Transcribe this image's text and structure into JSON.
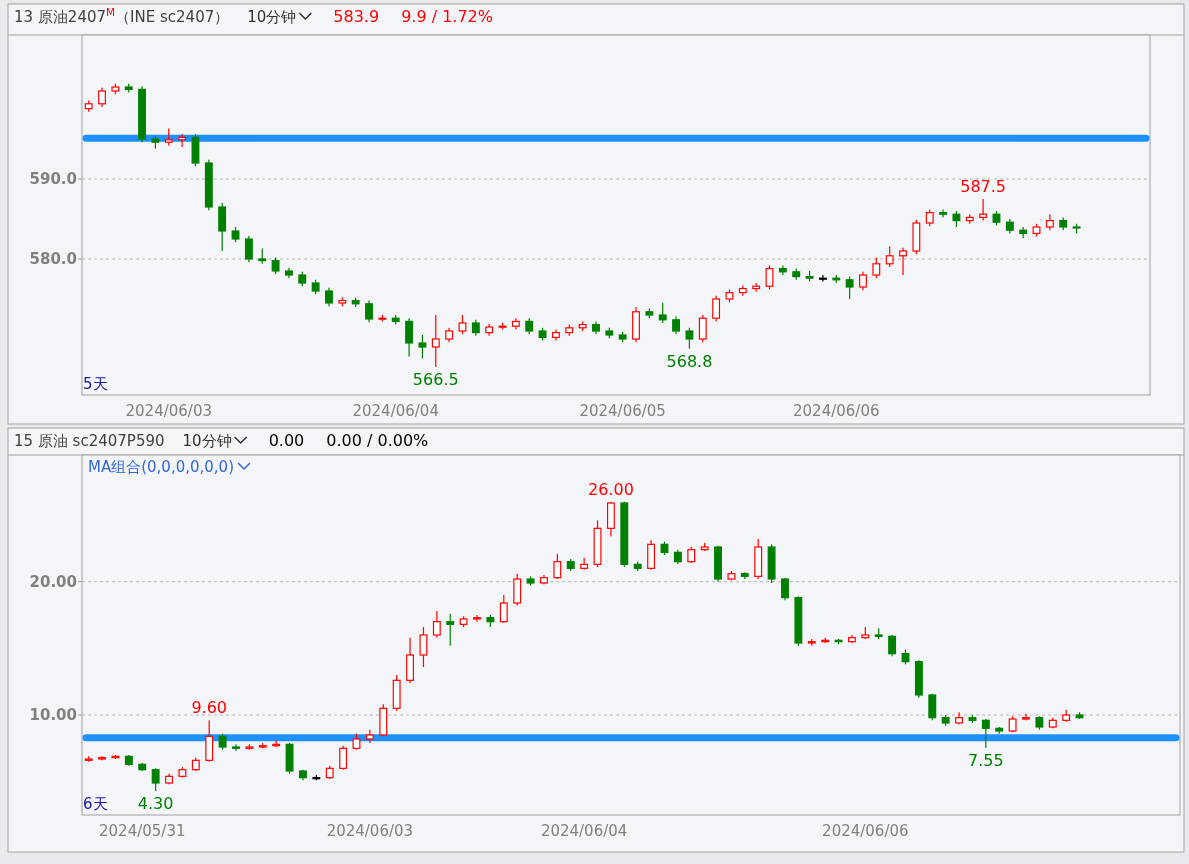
{
  "chart_data": [
    {
      "type": "candlestick",
      "title": "13 原油2407$^{M}$（INE sc2407）",
      "subtitle": "10分钟",
      "annotations": [
        "583.9",
        "9.9 / 1.72%",
        "5天",
        {
          "text": "566.5",
          "y": 566.5
        },
        {
          "text": "568.8",
          "y": 568.8
        },
        {
          "text": "587.5",
          "y": 587.5
        }
      ],
      "categories": [
        null,
        null,
        null,
        null,
        null,
        null,
        "2024/06/03",
        null,
        null,
        null,
        null,
        null,
        null,
        null,
        null,
        null,
        null,
        null,
        null,
        null,
        null,
        null,
        null,
        "2024/06/04",
        null,
        null,
        null,
        null,
        null,
        null,
        null,
        null,
        null,
        null,
        null,
        null,
        null,
        null,
        null,
        null,
        "2024/06/05",
        null,
        null,
        null,
        null,
        null,
        null,
        null,
        null,
        null,
        null,
        null,
        null,
        null,
        null,
        null,
        "2024/06/06",
        null,
        null,
        null,
        null,
        null,
        null,
        null,
        null,
        null,
        null,
        null,
        null,
        null,
        null,
        null,
        null,
        null,
        null,
        null,
        null,
        null,
        null,
        null
      ],
      "ohlc": [
        [
          598.8,
          599.8,
          598.4,
          599.4
        ],
        [
          599.4,
          601.4,
          599.0,
          601.0
        ],
        [
          601.0,
          601.9,
          600.6,
          601.5
        ],
        [
          601.5,
          601.9,
          600.8,
          601.2
        ],
        [
          601.2,
          601.6,
          594.6,
          595.0
        ],
        [
          595.0,
          595.4,
          593.8,
          594.6
        ],
        [
          594.6,
          596.3,
          594.2,
          594.9
        ],
        [
          594.9,
          595.6,
          594.0,
          595.2
        ],
        [
          595.2,
          595.6,
          591.6,
          592.0
        ],
        [
          592.0,
          592.4,
          586.1,
          586.5
        ],
        [
          586.5,
          587.0,
          581.0,
          583.5
        ],
        [
          583.5,
          584.0,
          582.1,
          582.5
        ],
        [
          582.5,
          582.9,
          579.6,
          580.0
        ],
        [
          580.0,
          581.3,
          579.4,
          579.8
        ],
        [
          579.8,
          580.2,
          578.1,
          578.5
        ],
        [
          578.5,
          578.9,
          577.6,
          578.0
        ],
        [
          578.0,
          578.4,
          576.6,
          577.0
        ],
        [
          577.0,
          577.4,
          575.6,
          576.0
        ],
        [
          576.0,
          576.4,
          574.1,
          574.5
        ],
        [
          574.5,
          575.2,
          574.1,
          574.8
        ],
        [
          574.8,
          575.2,
          574.0,
          574.4
        ],
        [
          574.4,
          574.8,
          572.1,
          572.5
        ],
        [
          572.5,
          573.0,
          572.2,
          572.6
        ],
        [
          572.6,
          573.0,
          571.8,
          572.2
        ],
        [
          572.2,
          572.6,
          567.8,
          569.5
        ],
        [
          569.5,
          570.5,
          567.6,
          569.0
        ],
        [
          569.0,
          573.0,
          566.5,
          570.0
        ],
        [
          570.0,
          571.4,
          569.6,
          571.0
        ],
        [
          571.0,
          573.0,
          570.6,
          572.0
        ],
        [
          572.0,
          572.4,
          570.4,
          570.8
        ],
        [
          570.8,
          571.9,
          570.4,
          571.5
        ],
        [
          571.5,
          572.0,
          571.2,
          571.6
        ],
        [
          571.6,
          572.6,
          571.2,
          572.2
        ],
        [
          572.2,
          572.6,
          570.6,
          571.0
        ],
        [
          571.0,
          571.4,
          569.8,
          570.2
        ],
        [
          570.2,
          571.2,
          569.8,
          570.8
        ],
        [
          570.8,
          571.8,
          570.4,
          571.4
        ],
        [
          571.4,
          572.2,
          571.0,
          571.8
        ],
        [
          571.8,
          572.2,
          570.6,
          571.0
        ],
        [
          571.0,
          571.4,
          570.1,
          570.5
        ],
        [
          570.5,
          570.9,
          569.6,
          570.0
        ],
        [
          570.0,
          574.0,
          569.6,
          573.4
        ],
        [
          573.4,
          573.8,
          572.6,
          573.0
        ],
        [
          573.0,
          574.5,
          572.0,
          572.4
        ],
        [
          572.4,
          572.8,
          570.6,
          571.0
        ],
        [
          571.0,
          571.4,
          568.8,
          570.0
        ],
        [
          570.0,
          573.0,
          569.6,
          572.6
        ],
        [
          572.6,
          575.4,
          572.2,
          575.0
        ],
        [
          575.0,
          576.2,
          574.6,
          575.8
        ],
        [
          575.8,
          576.7,
          575.4,
          576.3
        ],
        [
          576.3,
          577.0,
          575.9,
          576.6
        ],
        [
          576.6,
          579.2,
          576.2,
          578.8
        ],
        [
          578.8,
          579.2,
          578.0,
          578.4
        ],
        [
          578.4,
          578.8,
          577.4,
          577.8
        ],
        [
          577.8,
          578.5,
          577.2,
          577.6
        ],
        [
          577.6,
          578.0,
          577.2,
          577.6
        ],
        [
          577.6,
          578.0,
          577.0,
          577.4
        ],
        [
          577.4,
          577.8,
          575.0,
          576.5
        ],
        [
          576.5,
          578.4,
          576.1,
          578.0
        ],
        [
          578.0,
          580.2,
          577.6,
          579.4
        ],
        [
          579.4,
          581.6,
          579.0,
          580.4
        ],
        [
          580.4,
          581.4,
          578.0,
          581.0
        ],
        [
          581.0,
          584.9,
          580.6,
          584.5
        ],
        [
          584.5,
          586.2,
          584.1,
          585.8
        ],
        [
          585.8,
          586.2,
          585.2,
          585.6
        ],
        [
          585.6,
          586.0,
          584.0,
          584.8
        ],
        [
          584.8,
          585.6,
          584.4,
          585.2
        ],
        [
          585.2,
          587.5,
          584.8,
          585.6
        ],
        [
          585.6,
          586.0,
          584.2,
          584.6
        ],
        [
          584.6,
          585.0,
          583.2,
          583.6
        ],
        [
          583.6,
          584.0,
          582.6,
          583.2
        ],
        [
          583.2,
          584.4,
          582.8,
          584.0
        ],
        [
          584.0,
          585.6,
          583.6,
          584.8
        ],
        [
          584.8,
          585.2,
          583.6,
          584.0
        ],
        [
          584.0,
          584.4,
          583.2,
          583.9
        ],
        null,
        null,
        null,
        null,
        null
      ],
      "colors": [
        "#ff0000",
        "#ff0000",
        "#ff0000",
        "#008000",
        "#008000",
        "#008000",
        "#ff0000",
        "#ff0000",
        "#008000",
        "#008000",
        "#008000",
        "#008000",
        "#008000",
        "#008000",
        "#008000",
        "#008000",
        "#008000",
        "#008000",
        "#008000",
        "#ff0000",
        "#008000",
        "#008000",
        "#ff0000",
        "#008000",
        "#008000",
        "#008000",
        "#ff0000",
        "#ff0000",
        "#ff0000",
        "#008000",
        "#ff0000",
        "#ff0000",
        "#ff0000",
        "#008000",
        "#008000",
        "#ff0000",
        "#ff0000",
        "#ff0000",
        "#008000",
        "#008000",
        "#008000",
        "#ff0000",
        "#008000",
        "#008000",
        "#008000",
        "#008000",
        "#ff0000",
        "#ff0000",
        "#ff0000",
        "#ff0000",
        "#ff0000",
        "#ff0000",
        "#008000",
        "#008000",
        "#008000",
        "#000000",
        "#008000",
        "#008000",
        "#ff0000",
        "#ff0000",
        "#ff0000",
        "#ff0000",
        "#ff0000",
        "#ff0000",
        "#008000",
        "#008000",
        "#ff0000",
        "#ff0000",
        "#008000",
        "#008000",
        "#008000",
        "#ff0000",
        "#ff0000",
        "#008000",
        "#008000",
        null,
        null,
        null,
        null,
        null
      ],
      "ylim": [
        563,
        608
      ],
      "yticks": [
        {
          "value": 580,
          "label": "580.0"
        },
        {
          "value": 590,
          "label": "590.0"
        }
      ],
      "grid": "y",
      "ref_lines": [
        {
          "axis": "y",
          "value": 595.1,
          "color": "#1e90ff"
        }
      ]
    },
    {
      "type": "candlestick",
      "title": "15 原油 sc2407P590",
      "subtitle": "10分钟",
      "annotations": [
        "0.00",
        "0.00 / 0.00%",
        "MA组合(0,0,0,0,0,0)",
        "6天",
        {
          "text": "4.30",
          "y": 4.3
        },
        {
          "text": "9.60",
          "y": 9.6
        },
        {
          "text": "26.00",
          "y": 26.0
        },
        {
          "text": "7.55",
          "y": 7.55
        }
      ],
      "categories": [
        null,
        null,
        null,
        null,
        "2024/05/31",
        null,
        null,
        null,
        null,
        null,
        null,
        null,
        null,
        null,
        null,
        null,
        null,
        null,
        null,
        null,
        null,
        "2024/06/03",
        null,
        null,
        null,
        null,
        null,
        null,
        null,
        null,
        null,
        null,
        null,
        null,
        null,
        null,
        null,
        "2024/06/04",
        null,
        null,
        null,
        null,
        null,
        null,
        null,
        null,
        null,
        null,
        null,
        null,
        null,
        null,
        null,
        null,
        null,
        null,
        null,
        null,
        "2024/06/06",
        null,
        null,
        null,
        null,
        null,
        null,
        null,
        null,
        null,
        null,
        null,
        null,
        null,
        null,
        null,
        null,
        null,
        null,
        null,
        null,
        null,
        null,
        null
      ],
      "ohlc": [
        [
          6.6,
          6.9,
          6.5,
          6.7
        ],
        [
          6.7,
          6.9,
          6.6,
          6.8
        ],
        [
          6.8,
          7.0,
          6.7,
          6.9
        ],
        [
          6.9,
          7.0,
          6.2,
          6.3
        ],
        [
          6.3,
          6.4,
          5.8,
          5.9
        ],
        [
          5.9,
          6.0,
          4.3,
          4.9
        ],
        [
          4.9,
          5.6,
          4.8,
          5.4
        ],
        [
          5.4,
          6.1,
          5.3,
          5.9
        ],
        [
          5.9,
          6.8,
          5.8,
          6.6
        ],
        [
          6.6,
          9.6,
          6.5,
          8.4
        ],
        [
          8.4,
          8.6,
          7.4,
          7.6
        ],
        [
          7.6,
          7.8,
          7.3,
          7.5
        ],
        [
          7.5,
          7.8,
          7.4,
          7.6
        ],
        [
          7.6,
          7.9,
          7.5,
          7.7
        ],
        [
          7.7,
          8.1,
          7.6,
          7.8
        ],
        [
          7.8,
          7.9,
          5.6,
          5.8
        ],
        [
          5.8,
          5.9,
          5.1,
          5.3
        ],
        [
          5.3,
          5.5,
          5.1,
          5.3
        ],
        [
          5.3,
          6.2,
          5.2,
          6.0
        ],
        [
          6.0,
          7.7,
          5.9,
          7.5
        ],
        [
          7.5,
          8.6,
          7.4,
          8.2
        ],
        [
          8.2,
          8.9,
          7.9,
          8.5
        ],
        [
          8.5,
          10.8,
          8.4,
          10.5
        ],
        [
          10.5,
          13.0,
          10.3,
          12.6
        ],
        [
          12.6,
          15.8,
          12.4,
          14.5
        ],
        [
          14.5,
          16.6,
          13.6,
          16.0
        ],
        [
          16.0,
          17.8,
          15.8,
          17.0
        ],
        [
          17.0,
          17.6,
          15.2,
          16.8
        ],
        [
          16.8,
          17.4,
          16.6,
          17.2
        ],
        [
          17.2,
          17.5,
          17.0,
          17.3
        ],
        [
          17.3,
          17.5,
          16.6,
          17.0
        ],
        [
          17.0,
          19.0,
          16.9,
          18.4
        ],
        [
          18.4,
          20.6,
          18.2,
          20.2
        ],
        [
          20.2,
          20.4,
          19.7,
          19.9
        ],
        [
          19.9,
          20.5,
          19.8,
          20.3
        ],
        [
          20.3,
          22.1,
          20.2,
          21.5
        ],
        [
          21.5,
          21.7,
          20.8,
          21.0
        ],
        [
          21.0,
          21.8,
          20.9,
          21.3
        ],
        [
          21.3,
          24.6,
          21.1,
          24.0
        ],
        [
          24.0,
          26.0,
          23.4,
          25.9
        ],
        [
          25.9,
          26.0,
          21.1,
          21.3
        ],
        [
          21.3,
          21.5,
          20.8,
          21.0
        ],
        [
          21.0,
          23.1,
          20.9,
          22.8
        ],
        [
          22.8,
          23.0,
          22.0,
          22.2
        ],
        [
          22.2,
          22.4,
          21.3,
          21.5
        ],
        [
          21.5,
          22.6,
          21.4,
          22.4
        ],
        [
          22.4,
          22.9,
          22.3,
          22.6
        ],
        [
          22.6,
          22.7,
          20.0,
          20.2
        ],
        [
          20.2,
          20.8,
          20.1,
          20.6
        ],
        [
          20.6,
          20.7,
          20.2,
          20.4
        ],
        [
          20.4,
          23.2,
          20.2,
          22.6
        ],
        [
          22.6,
          22.8,
          19.9,
          20.2
        ],
        [
          20.2,
          20.3,
          18.6,
          18.8
        ],
        [
          18.8,
          18.9,
          15.2,
          15.4
        ],
        [
          15.4,
          15.7,
          15.2,
          15.5
        ],
        [
          15.5,
          15.8,
          15.4,
          15.6
        ],
        [
          15.6,
          15.7,
          15.3,
          15.5
        ],
        [
          15.5,
          16.0,
          15.4,
          15.8
        ],
        [
          15.8,
          16.6,
          15.7,
          16.0
        ],
        [
          16.0,
          16.5,
          15.7,
          15.9
        ],
        [
          15.9,
          16.0,
          14.4,
          14.6
        ],
        [
          14.6,
          14.9,
          13.8,
          14.0
        ],
        [
          14.0,
          14.1,
          11.3,
          11.5
        ],
        [
          11.5,
          11.6,
          9.6,
          9.8
        ],
        [
          9.8,
          10.0,
          9.2,
          9.4
        ],
        [
          9.4,
          10.2,
          9.3,
          9.8
        ],
        [
          9.8,
          10.0,
          9.4,
          9.6
        ],
        [
          9.6,
          9.7,
          7.55,
          9.0
        ],
        [
          9.0,
          9.1,
          8.6,
          8.8
        ],
        [
          8.8,
          9.9,
          8.7,
          9.7
        ],
        [
          9.7,
          10.1,
          9.6,
          9.8
        ],
        [
          9.8,
          9.9,
          8.9,
          9.1
        ],
        [
          9.1,
          9.8,
          9.0,
          9.6
        ],
        [
          9.6,
          10.4,
          9.5,
          10.0
        ],
        [
          10.0,
          10.2,
          9.7,
          9.8
        ],
        null,
        null,
        null,
        null,
        null,
        null,
        null
      ],
      "colors": [
        "#ff0000",
        "#ff0000",
        "#ff0000",
        "#008000",
        "#008000",
        "#008000",
        "#ff0000",
        "#ff0000",
        "#ff0000",
        "#ff0000",
        "#008000",
        "#008000",
        "#ff0000",
        "#ff0000",
        "#ff0000",
        "#008000",
        "#008000",
        "#000000",
        "#ff0000",
        "#ff0000",
        "#ff0000",
        "#ff0000",
        "#ff0000",
        "#ff0000",
        "#ff0000",
        "#ff0000",
        "#ff0000",
        "#008000",
        "#ff0000",
        "#ff0000",
        "#008000",
        "#ff0000",
        "#ff0000",
        "#008000",
        "#ff0000",
        "#ff0000",
        "#008000",
        "#ff0000",
        "#ff0000",
        "#ff0000",
        "#008000",
        "#008000",
        "#ff0000",
        "#008000",
        "#008000",
        "#ff0000",
        "#ff0000",
        "#008000",
        "#ff0000",
        "#008000",
        "#ff0000",
        "#008000",
        "#008000",
        "#008000",
        "#ff0000",
        "#ff0000",
        "#008000",
        "#ff0000",
        "#ff0000",
        "#008000",
        "#008000",
        "#008000",
        "#008000",
        "#008000",
        "#008000",
        "#ff0000",
        "#008000",
        "#008000",
        "#008000",
        "#ff0000",
        "#ff0000",
        "#008000",
        "#ff0000",
        "#ff0000",
        "#008000",
        null,
        null,
        null,
        null,
        null,
        null,
        null
      ],
      "ylim": [
        2.5,
        29.5
      ],
      "yticks": [
        {
          "value": 10,
          "label": "10.00"
        },
        {
          "value": 20,
          "label": "20.00"
        }
      ],
      "grid": "y",
      "ref_lines": [
        {
          "axis": "y",
          "value": 8.3,
          "color": "#1e90ff"
        }
      ]
    }
  ]
}
